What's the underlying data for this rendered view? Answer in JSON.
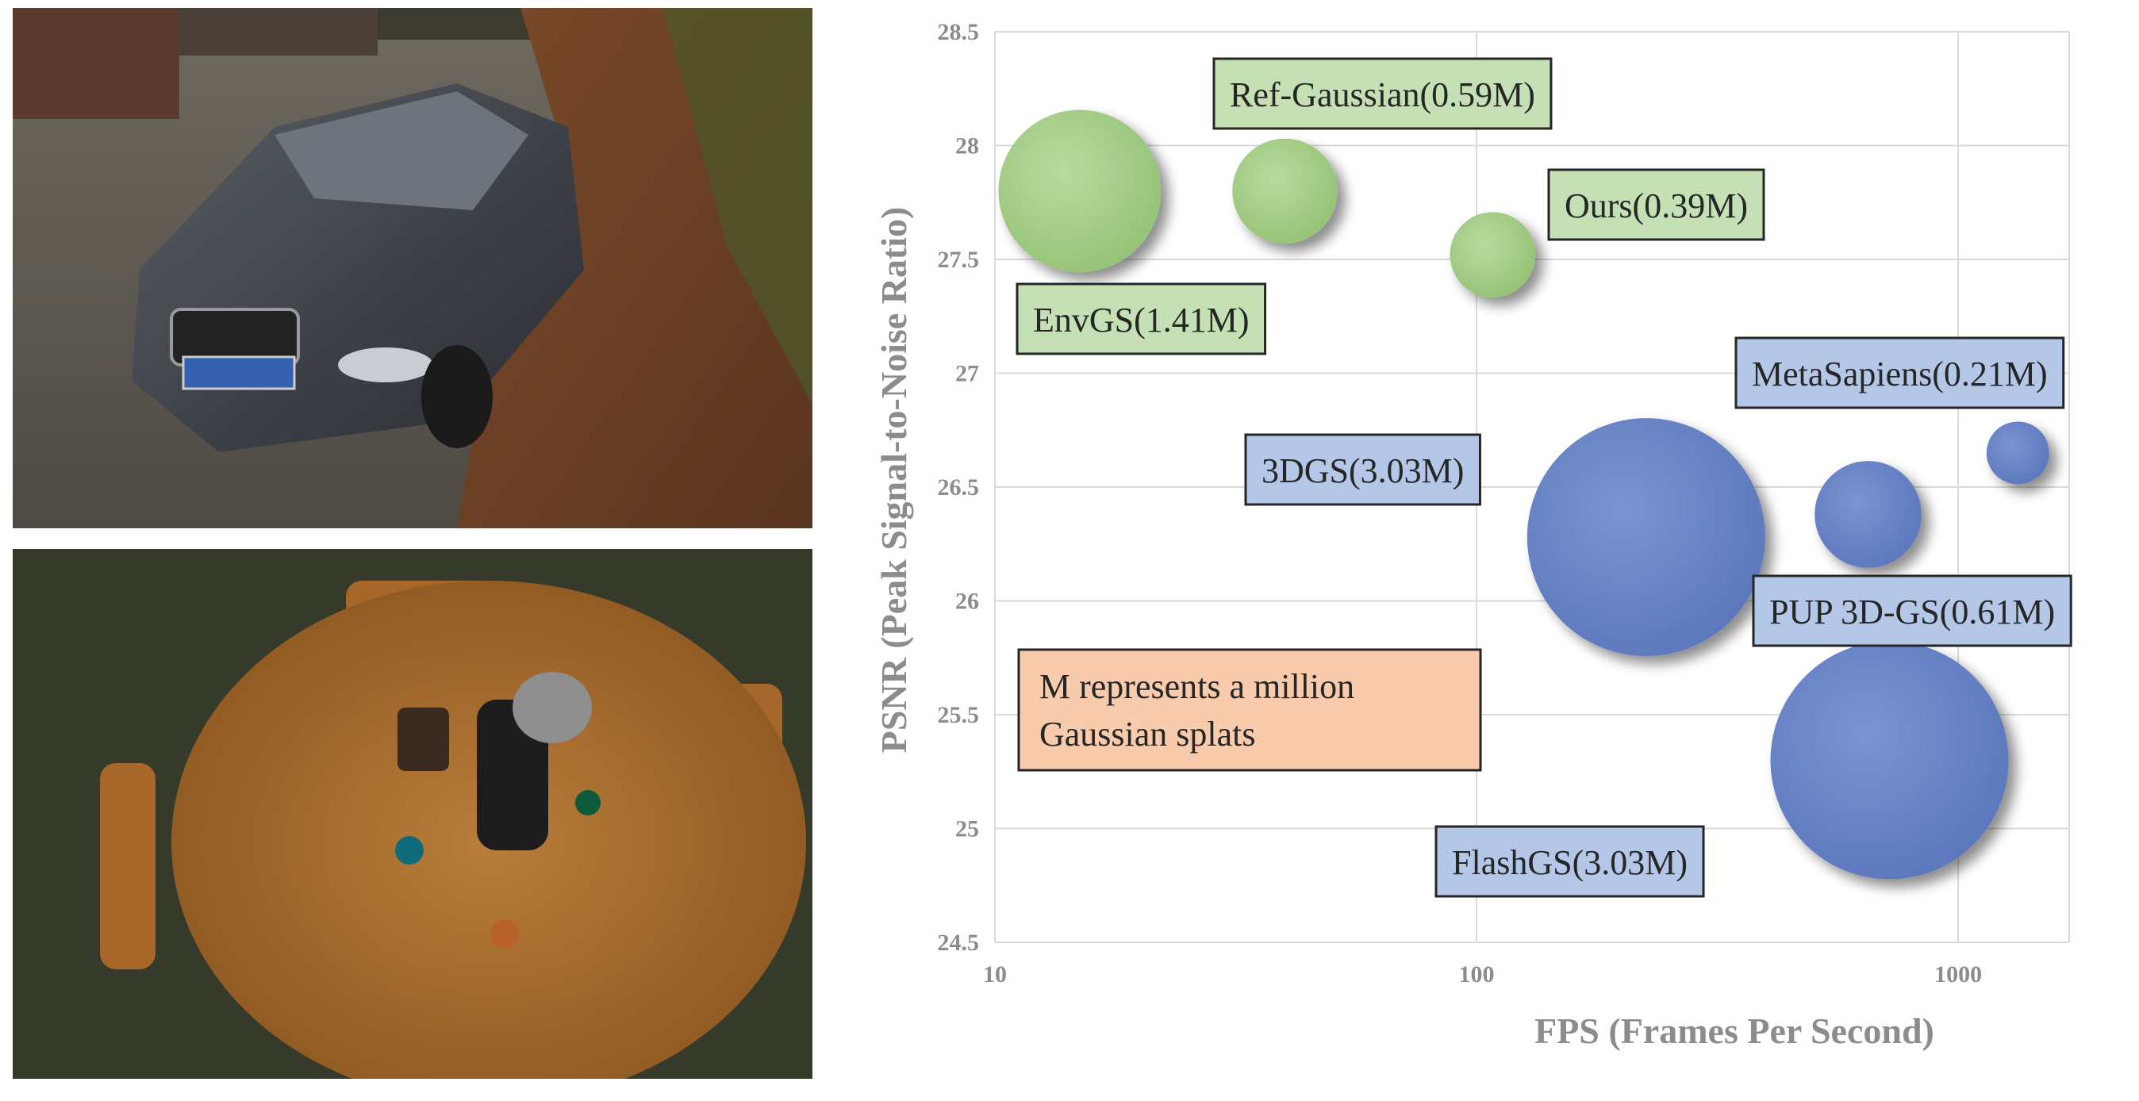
{
  "images": {
    "top": "car-photo",
    "bottom": "table-photo"
  },
  "chart_data": {
    "type": "bubble",
    "xlabel": "FPS (Frames Per Second)",
    "ylabel": "PSNR (Peak Signal-to-Noise Ratio)",
    "x_scale": "log",
    "xlim": [
      10,
      1700
    ],
    "ylim": [
      24.5,
      28.5
    ],
    "x_ticks": [
      "10",
      "100",
      "1000"
    ],
    "x_tick_values": [
      10,
      100,
      1000
    ],
    "y_ticks": [
      "24.5",
      "25",
      "25.5",
      "26",
      "26.5",
      "27",
      "27.5",
      "28",
      "28.5"
    ],
    "y_tick_values": [
      24.5,
      25,
      25.5,
      26,
      26.5,
      27,
      27.5,
      28,
      28.5
    ],
    "grid": true,
    "colors": {
      "reflective": "#a9d18e",
      "general": "#6f8ac9",
      "green_box": "#c5e0b4",
      "blue_box": "#b4c7e7",
      "note_box": "#f8cbad"
    },
    "series": [
      {
        "label": "EnvGS(1.41M)",
        "x": 15,
        "y": 27.8,
        "size": 1.41,
        "group": "reflective"
      },
      {
        "label": "Ref-Gaussian(0.59M)",
        "x": 40,
        "y": 27.8,
        "size": 0.59,
        "group": "reflective"
      },
      {
        "label": "Ours(0.39M)",
        "x": 108,
        "y": 27.52,
        "size": 0.39,
        "group": "reflective"
      },
      {
        "label": "3DGS(3.03M)",
        "x": 225,
        "y": 26.28,
        "size": 3.03,
        "group": "general"
      },
      {
        "label": "MetaSapiens(0.21M)",
        "x": 1330,
        "y": 26.65,
        "size": 0.21,
        "group": "general"
      },
      {
        "label": "PUP 3D-GS(0.61M)",
        "x": 650,
        "y": 26.38,
        "size": 0.61,
        "group": "general"
      },
      {
        "label": "FlashGS(3.03M)",
        "x": 720,
        "y": 25.3,
        "size": 3.03,
        "group": "general"
      }
    ],
    "annotations": {
      "note_line1": "M represents a million",
      "note_line2": "Gaussian splats"
    }
  }
}
